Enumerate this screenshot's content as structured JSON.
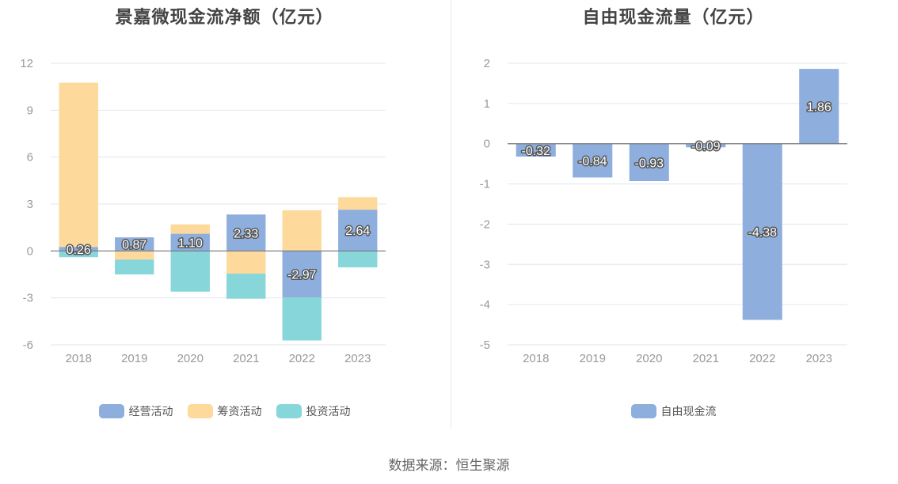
{
  "source": "数据来源：恒生聚源",
  "chart_data": [
    {
      "type": "bar",
      "stacked": true,
      "title": "景嘉微现金流净额（亿元）",
      "categories": [
        "2018",
        "2019",
        "2020",
        "2021",
        "2022",
        "2023"
      ],
      "ylim": [
        -6,
        12
      ],
      "yticks": [
        12,
        9,
        6,
        3,
        0,
        -3,
        -6
      ],
      "grid": true,
      "legend": "bottom",
      "series": [
        {
          "name": "经营活动",
          "color": "#8eaedd",
          "values": [
            0.26,
            0.87,
            1.1,
            2.33,
            -2.97,
            2.64
          ],
          "labels": [
            "0.26",
            "0.87",
            "1.10",
            "2.33",
            "-2.97",
            "2.64"
          ]
        },
        {
          "name": "筹资活动",
          "color": "#fdd99b",
          "values": [
            10.5,
            -0.55,
            0.6,
            -1.45,
            2.6,
            0.8
          ]
        },
        {
          "name": "投资活动",
          "color": "#86d6da",
          "values": [
            -0.4,
            -0.95,
            -2.6,
            -1.6,
            -2.75,
            -1.05
          ]
        }
      ]
    },
    {
      "type": "bar",
      "title": "自由现金流量（亿元）",
      "categories": [
        "2018",
        "2019",
        "2020",
        "2021",
        "2022",
        "2023"
      ],
      "ylim": [
        -5,
        2
      ],
      "yticks": [
        2,
        1,
        0,
        -1,
        -2,
        -3,
        -4,
        -5
      ],
      "grid": true,
      "legend": "bottom",
      "series": [
        {
          "name": "自由现金流",
          "color": "#8eaedd",
          "values": [
            -0.32,
            -0.84,
            -0.93,
            -0.09,
            -4.38,
            1.86
          ],
          "labels": [
            "-0.32",
            "-0.84",
            "-0.93",
            "-0.09",
            "-4.38",
            "1.86"
          ]
        }
      ]
    }
  ]
}
